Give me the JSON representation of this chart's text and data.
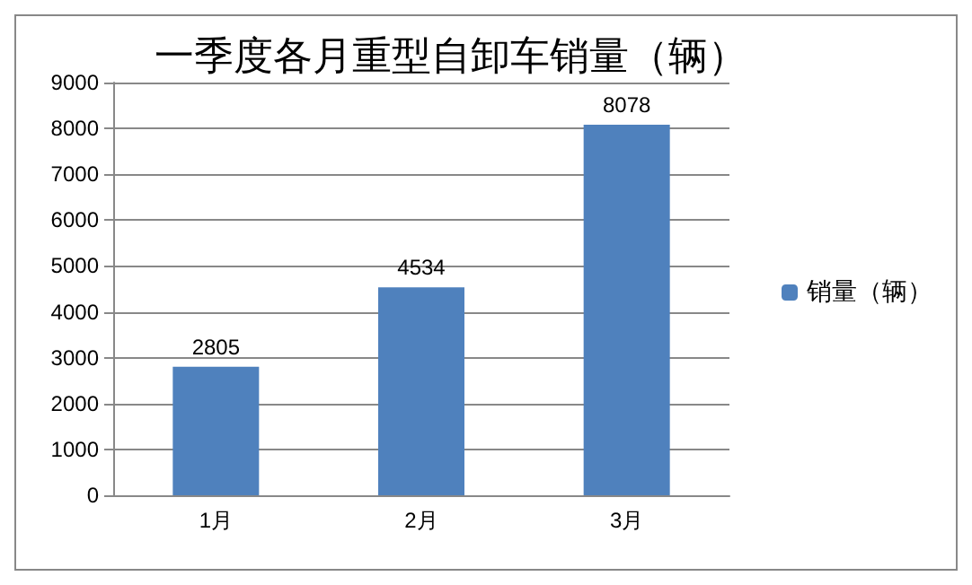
{
  "chart_data": {
    "type": "bar",
    "title": "一季度各月重型自卸车销量（辆）",
    "categories": [
      "1月",
      "2月",
      "3月"
    ],
    "series": [
      {
        "name": "销量（辆）",
        "color": "#4f81bd",
        "values": [
          2805,
          4534,
          8078
        ]
      }
    ],
    "ylim": [
      0,
      9000
    ],
    "yticks": [
      0,
      1000,
      2000,
      3000,
      4000,
      5000,
      6000,
      7000,
      8000,
      9000
    ],
    "grid": "y",
    "legend": "right",
    "data_labels": true
  }
}
